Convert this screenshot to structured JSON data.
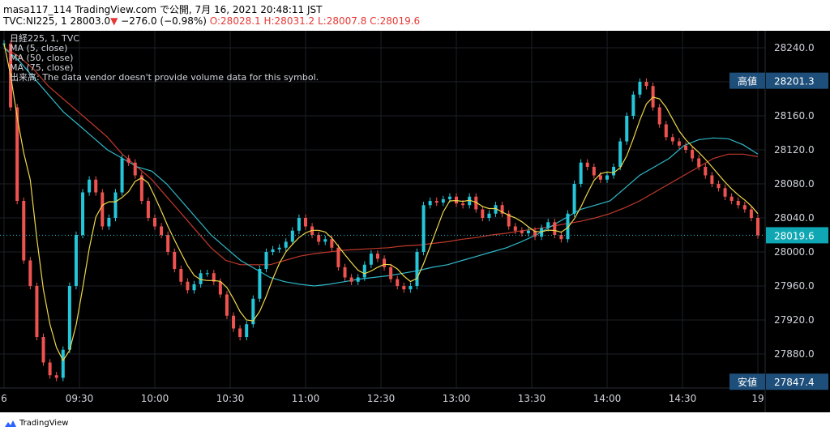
{
  "header": {
    "line1": "masa117_114 TradingView.com で公開, 7月 16, 2021 20:48:11 JST",
    "symbol": "TVC:NI225, 1",
    "last": "28003.0",
    "change_arrow": "▼",
    "change": "−276.0 (−0.98%)",
    "ohlc": "O:28028.1 H:28031.2 L:28007.8 C:28019.6"
  },
  "legend": {
    "title": "日経225, 1, TVC",
    "ma5": "MA (5, close)",
    "ma50": "MA (50, close)",
    "ma75": "MA (75, close)",
    "volume": "出来高: The data vendor doesn't provide volume data for this symbol."
  },
  "footer": {
    "brand": "TradingView"
  },
  "colors": {
    "background": "#000000",
    "up": "#26c6da",
    "down": "#ef5350",
    "ma5": "#f0d84a",
    "ma50": "#2fb8c8",
    "ma75": "#c0392b",
    "label_bg": "#1e4f7a"
  },
  "chart_data": {
    "type": "candlestick",
    "title": "日経225, 1, TVC",
    "ylim": [
      27840,
      28260
    ],
    "y_ticks": [
      "28240.0",
      "28200.0",
      "28160.0",
      "28120.0",
      "28080.0",
      "28040.0",
      "28000.0",
      "27960.0",
      "27920.0",
      "27880.0"
    ],
    "x_tick_labels": [
      "6",
      "09:30",
      "10:00",
      "10:30",
      "11:00",
      "12:30",
      "13:00",
      "13:30",
      "14:00",
      "14:30",
      "19"
    ],
    "x_tick_index": [
      0,
      23,
      46,
      69,
      92,
      115,
      138,
      161,
      184,
      207,
      230
    ],
    "last_price_label": "28019.6",
    "last_price": 28019.6,
    "high_label_name": "高値",
    "high_label": "28201.3",
    "high": 28201.3,
    "low_label_name": "安値",
    "low_label": "27847.4",
    "low": 27847.4,
    "close": [
      28245,
      28170,
      28060,
      27990,
      27960,
      27900,
      27870,
      27855,
      27852,
      27885,
      27960,
      28020,
      28070,
      28085,
      28070,
      28030,
      28040,
      28070,
      28110,
      28105,
      28090,
      28060,
      28040,
      28030,
      28020,
      28000,
      27980,
      27965,
      27955,
      27962,
      27975,
      27975,
      27965,
      27950,
      27925,
      27910,
      27900,
      27915,
      27945,
      27980,
      28000,
      28003,
      28005,
      28012,
      28025,
      28040,
      28030,
      28020,
      28012,
      28015,
      28005,
      27982,
      27970,
      27965,
      27970,
      27985,
      27998,
      27992,
      27982,
      27968,
      27960,
      27956,
      27960,
      28000,
      28055,
      28060,
      28058,
      28062,
      28065,
      28057,
      28055,
      28065,
      28050,
      28040,
      28045,
      28055,
      28045,
      28030,
      28025,
      28022,
      28025,
      28018,
      28028,
      28035,
      28020,
      28015,
      28045,
      28080,
      28105,
      28100,
      28090,
      28085,
      28090,
      28100,
      28130,
      28160,
      28185,
      28200,
      28195,
      28170,
      28150,
      28135,
      28130,
      28125,
      28120,
      28110,
      28100,
      28090,
      28080,
      28075,
      28065,
      28060,
      28055,
      28050,
      28040,
      28019.6
    ],
    "ma50": [
      28240,
      28225,
      28205,
      28185,
      28165,
      28150,
      28135,
      28120,
      28110,
      28100,
      28095,
      28080,
      28060,
      28040,
      28020,
      28005,
      27990,
      27980,
      27970,
      27965,
      27962,
      27960,
      27962,
      27965,
      27968,
      27970,
      27972,
      27975,
      27978,
      27982,
      27985,
      27990,
      27995,
      28000,
      28005,
      28012,
      28020,
      28030,
      28040,
      28050,
      28055,
      28060,
      28075,
      28090,
      28100,
      28110,
      28125,
      28132,
      28134,
      28133,
      28126,
      28115
    ],
    "ma75": [
      28240,
      28230,
      28215,
      28195,
      28180,
      28165,
      28150,
      28135,
      28115,
      28100,
      28085,
      28065,
      28045,
      28025,
      28005,
      27990,
      27985,
      27985,
      27985,
      27990,
      27995,
      27998,
      28000,
      28002,
      28003,
      28004,
      28005,
      28007,
      28008,
      28010,
      28012,
      28015,
      28017,
      28020,
      28022,
      28025,
      28027,
      28030,
      28033,
      28036,
      28040,
      28045,
      28052,
      28060,
      28070,
      28080,
      28090,
      28100,
      28110,
      28115,
      28115,
      28112
    ]
  }
}
